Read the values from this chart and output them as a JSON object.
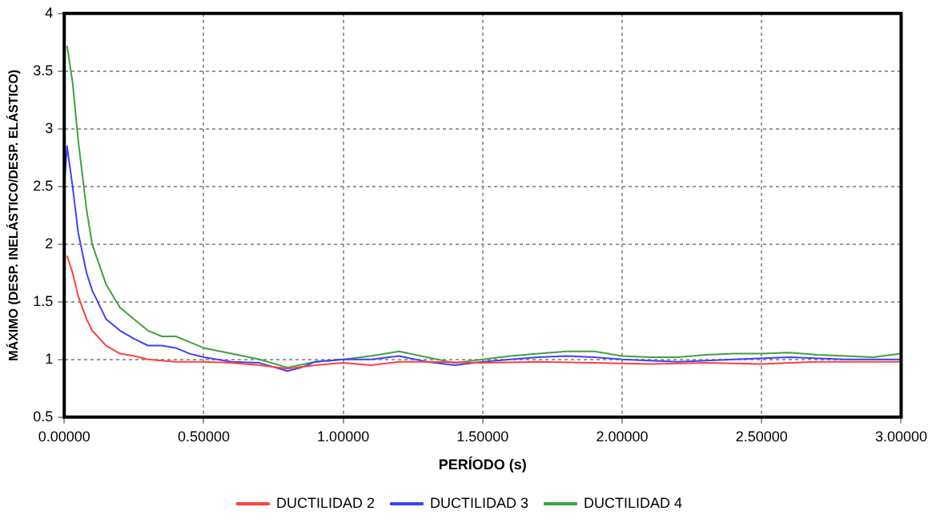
{
  "chart_data": {
    "type": "line",
    "xlabel": "PERÍODO (s)",
    "ylabel": "MÁXIMO (DESP. INELÁSTICO/DESP. ELÁSTICO)",
    "xlim": [
      0,
      3
    ],
    "ylim": [
      0.5,
      4
    ],
    "xticks": [
      {
        "value": 0,
        "label": "0.00000"
      },
      {
        "value": 0.5,
        "label": "0.50000"
      },
      {
        "value": 1,
        "label": "1.00000"
      },
      {
        "value": 1.5,
        "label": "1.50000"
      },
      {
        "value": 2,
        "label": "2.00000"
      },
      {
        "value": 2.5,
        "label": "2.50000"
      },
      {
        "value": 3,
        "label": "3.00000"
      }
    ],
    "yticks": [
      0.5,
      1,
      1.5,
      2,
      2.5,
      3,
      3.5,
      4
    ],
    "grid": true,
    "legend": "bottom",
    "marker": "none",
    "line_style": "solid",
    "series": [
      {
        "name": "DUCTILIDAD 2",
        "color": "#ff4040",
        "x": [
          0.01,
          0.03,
          0.05,
          0.08,
          0.1,
          0.15,
          0.2,
          0.25,
          0.3,
          0.4,
          0.5,
          0.6,
          0.7,
          0.8,
          0.9,
          1.0,
          1.1,
          1.2,
          1.3,
          1.5,
          1.7,
          1.9,
          2.1,
          2.3,
          2.5,
          2.7,
          2.9,
          3.0
        ],
        "values": [
          1.9,
          1.75,
          1.55,
          1.35,
          1.25,
          1.12,
          1.05,
          1.03,
          1.0,
          0.98,
          0.98,
          0.97,
          0.95,
          0.92,
          0.95,
          0.97,
          0.95,
          0.98,
          0.98,
          0.97,
          0.98,
          0.97,
          0.96,
          0.97,
          0.96,
          0.98,
          0.98,
          0.98
        ]
      },
      {
        "name": "DUCTILIDAD 3",
        "color": "#4040ff",
        "x": [
          0,
          0.01,
          0.03,
          0.05,
          0.08,
          0.1,
          0.15,
          0.2,
          0.25,
          0.3,
          0.35,
          0.4,
          0.45,
          0.5,
          0.6,
          0.7,
          0.8,
          0.85,
          0.9,
          1.0,
          1.1,
          1.2,
          1.3,
          1.4,
          1.5,
          1.6,
          1.7,
          1.8,
          1.9,
          2.0,
          2.2,
          2.4,
          2.6,
          2.8,
          3.0
        ],
        "values": [
          2.5,
          2.85,
          2.5,
          2.1,
          1.75,
          1.6,
          1.35,
          1.25,
          1.18,
          1.12,
          1.12,
          1.1,
          1.05,
          1.02,
          0.98,
          0.97,
          0.9,
          0.93,
          0.98,
          1.0,
          1.0,
          1.03,
          0.98,
          0.95,
          0.98,
          1.0,
          1.02,
          1.03,
          1.02,
          1.0,
          0.98,
          1.0,
          1.02,
          1.0,
          1.0
        ]
      },
      {
        "name": "DUCTILIDAD 4",
        "color": "#40a040",
        "x": [
          0.01,
          0.03,
          0.05,
          0.08,
          0.1,
          0.15,
          0.2,
          0.25,
          0.3,
          0.35,
          0.4,
          0.45,
          0.5,
          0.6,
          0.7,
          0.8,
          0.9,
          1.0,
          1.1,
          1.2,
          1.3,
          1.4,
          1.5,
          1.6,
          1.7,
          1.8,
          1.9,
          2.0,
          2.1,
          2.2,
          2.3,
          2.4,
          2.5,
          2.6,
          2.7,
          2.8,
          2.9,
          3.0
        ],
        "values": [
          3.72,
          3.4,
          2.9,
          2.3,
          2.0,
          1.65,
          1.45,
          1.35,
          1.25,
          1.2,
          1.2,
          1.15,
          1.1,
          1.05,
          1.0,
          0.93,
          0.98,
          1.0,
          1.03,
          1.07,
          1.02,
          0.97,
          1.0,
          1.03,
          1.05,
          1.07,
          1.07,
          1.03,
          1.02,
          1.02,
          1.04,
          1.05,
          1.05,
          1.06,
          1.04,
          1.03,
          1.02,
          1.05
        ]
      }
    ]
  }
}
